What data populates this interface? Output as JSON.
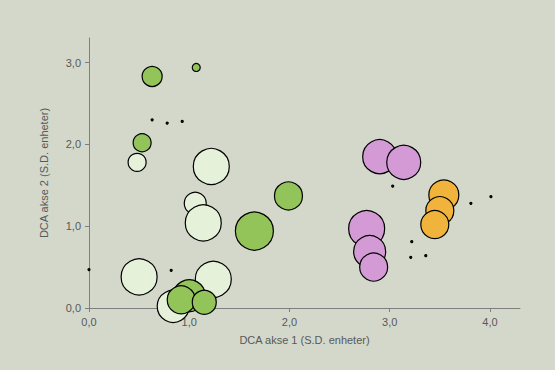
{
  "chart_data": {
    "type": "scatter",
    "xlabel": "DCA akse 1 (S.D. enheter)",
    "ylabel": "DCA akse 2 (S.D. enheter)",
    "xlim": [
      0,
      4.3
    ],
    "ylim": [
      0,
      3.3
    ],
    "xticks": [
      {
        "value": 0,
        "label": "0,0"
      },
      {
        "value": 1,
        "label": "1,0"
      },
      {
        "value": 2,
        "label": "2,0"
      },
      {
        "value": 3,
        "label": "3,0"
      },
      {
        "value": 4,
        "label": "4,0"
      }
    ],
    "yticks": [
      {
        "value": 0,
        "label": "0,0"
      },
      {
        "value": 1,
        "label": "1,0"
      },
      {
        "value": 2,
        "label": "2,0"
      },
      {
        "value": 3,
        "label": "3,0"
      }
    ],
    "grid": false,
    "marker": "circle",
    "series": [
      {
        "color": "#e6f1da",
        "x": [
          0.48,
          1.22,
          1.06,
          1.14,
          0.5,
          1.24,
          0.84
        ],
        "y": [
          1.78,
          1.73,
          1.28,
          1.04,
          0.38,
          0.35,
          0.02
        ],
        "sizes": [
          9,
          18,
          11,
          18,
          18,
          18,
          16
        ]
      },
      {
        "color": "#92c45a",
        "x": [
          0.63,
          1.07,
          0.53,
          1.99,
          1.65,
          1.0,
          0.92,
          1.15
        ],
        "y": [
          2.83,
          2.94,
          2.02,
          1.37,
          0.94,
          0.15,
          0.1,
          0.07
        ],
        "sizes": [
          10,
          4,
          9,
          14,
          19,
          16,
          14,
          12
        ]
      },
      {
        "color": "#d49ad6",
        "x": [
          2.9,
          3.14,
          2.77,
          2.8,
          2.84
        ],
        "y": [
          1.85,
          1.78,
          0.97,
          0.69,
          0.5
        ],
        "sizes": [
          17,
          17,
          18,
          16,
          14
        ]
      },
      {
        "color": "#f0b43c",
        "x": [
          3.54,
          3.5,
          3.45
        ],
        "y": [
          1.38,
          1.19,
          1.02
        ],
        "sizes": [
          15,
          14,
          14
        ]
      },
      {
        "color": "#222222",
        "x": [
          0.63,
          0.78,
          0.93,
          3.03,
          3.22,
          3.21,
          3.36,
          3.81,
          4.01,
          0.82,
          0.0
        ],
        "y": [
          2.3,
          2.26,
          2.28,
          1.49,
          0.81,
          0.62,
          0.64,
          1.28,
          1.36,
          0.46,
          0.47
        ],
        "sizes": [
          1,
          1,
          1,
          1,
          1,
          1,
          1,
          1,
          1,
          1,
          1
        ]
      }
    ]
  }
}
